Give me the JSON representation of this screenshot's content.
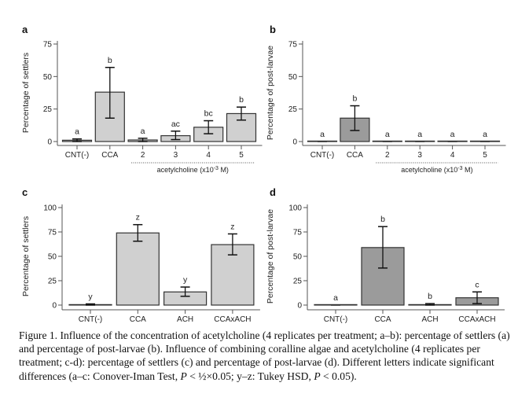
{
  "chart_data": [
    {
      "type": "bar",
      "panel": "a",
      "title": "",
      "xlabel": "",
      "ylabel": "Percentage of settlers",
      "ylim": [
        0,
        75
      ],
      "yticks": [
        0,
        25,
        50,
        75
      ],
      "categories": [
        "CNT(-)",
        "CCA",
        "2",
        "3",
        "4",
        "5"
      ],
      "values": [
        1,
        38,
        1.2,
        4.5,
        11,
        21.5
      ],
      "error_low": [
        0,
        18,
        0,
        1.5,
        6,
        16.5
      ],
      "error_high": [
        2,
        57,
        2.5,
        8,
        16,
        26.5
      ],
      "letters": [
        "a",
        "b",
        "a",
        "ac",
        "bc",
        "b"
      ],
      "bar_color": "#d0d0d0",
      "group_bracket": {
        "label": "acetylcholine (x10",
        "sup": "-3",
        "suffix": " M)",
        "from": 2,
        "to": 5
      }
    },
    {
      "type": "bar",
      "panel": "b",
      "title": "",
      "xlabel": "",
      "ylabel": "Percentage of post-larvae",
      "ylim": [
        0,
        75
      ],
      "yticks": [
        0,
        25,
        50,
        75
      ],
      "categories": [
        "CNT(-)",
        "CCA",
        "2",
        "3",
        "4",
        "5"
      ],
      "values": [
        0,
        18,
        0,
        0,
        0,
        0
      ],
      "error_low": [
        0,
        8.5,
        0,
        0,
        0,
        0
      ],
      "error_high": [
        0,
        27.5,
        0,
        0,
        0,
        0
      ],
      "letters": [
        "a",
        "b",
        "a",
        "a",
        "a",
        "a"
      ],
      "bar_color": "#9b9b9b",
      "group_bracket": {
        "label": "acetylcholine (x10",
        "sup": "-3",
        "suffix": " M)",
        "from": 2,
        "to": 5
      }
    },
    {
      "type": "bar",
      "panel": "c",
      "title": "",
      "xlabel": "",
      "ylabel": "Percentage of settlers",
      "ylim": [
        0,
        100
      ],
      "yticks": [
        0,
        25,
        50,
        75,
        100
      ],
      "categories": [
        "CNT(-)",
        "CCA",
        "ACH",
        "CCAxACH"
      ],
      "values": [
        0.5,
        74,
        13.5,
        62
      ],
      "error_low": [
        0,
        65.5,
        9,
        51.5
      ],
      "error_high": [
        1.2,
        82.5,
        18.5,
        73
      ],
      "letters": [
        "y",
        "z",
        "y",
        "z"
      ],
      "bar_color": "#d0d0d0"
    },
    {
      "type": "bar",
      "panel": "d",
      "title": "",
      "xlabel": "",
      "ylabel": "Percentage of post-larvae",
      "ylim": [
        0,
        100
      ],
      "yticks": [
        0,
        25,
        50,
        75,
        100
      ],
      "categories": [
        "CNT(-)",
        "CCA",
        "ACH",
        "CCAxACH"
      ],
      "values": [
        0,
        59,
        0.5,
        7.5
      ],
      "error_low": [
        0,
        38,
        0,
        1.5
      ],
      "error_high": [
        0,
        80.5,
        1.5,
        13.5
      ],
      "letters": [
        "a",
        "b",
        "b",
        "c"
      ],
      "bar_color": "#9b9b9b"
    }
  ],
  "caption": {
    "segments": [
      {
        "t": "Figure 1. Influence of the concentration of acetylcholine (4 replicates per treatment; a–b): percentage of settlers (a) and percentage of post-larvae (b). Influence of combining coralline algae and acetylcholine (4 replicates per treatment; c-d): percentage of settlers (c) and percentage of post-larvae (d). Different letters indicate significant differences (a–c: Conover-Iman Test, "
      },
      {
        "t": "P",
        "i": true
      },
      {
        "t": " < ½×0.05; y–z: Tukey HSD, "
      },
      {
        "t": "P",
        "i": true
      },
      {
        "t": " < 0.05)."
      }
    ]
  }
}
